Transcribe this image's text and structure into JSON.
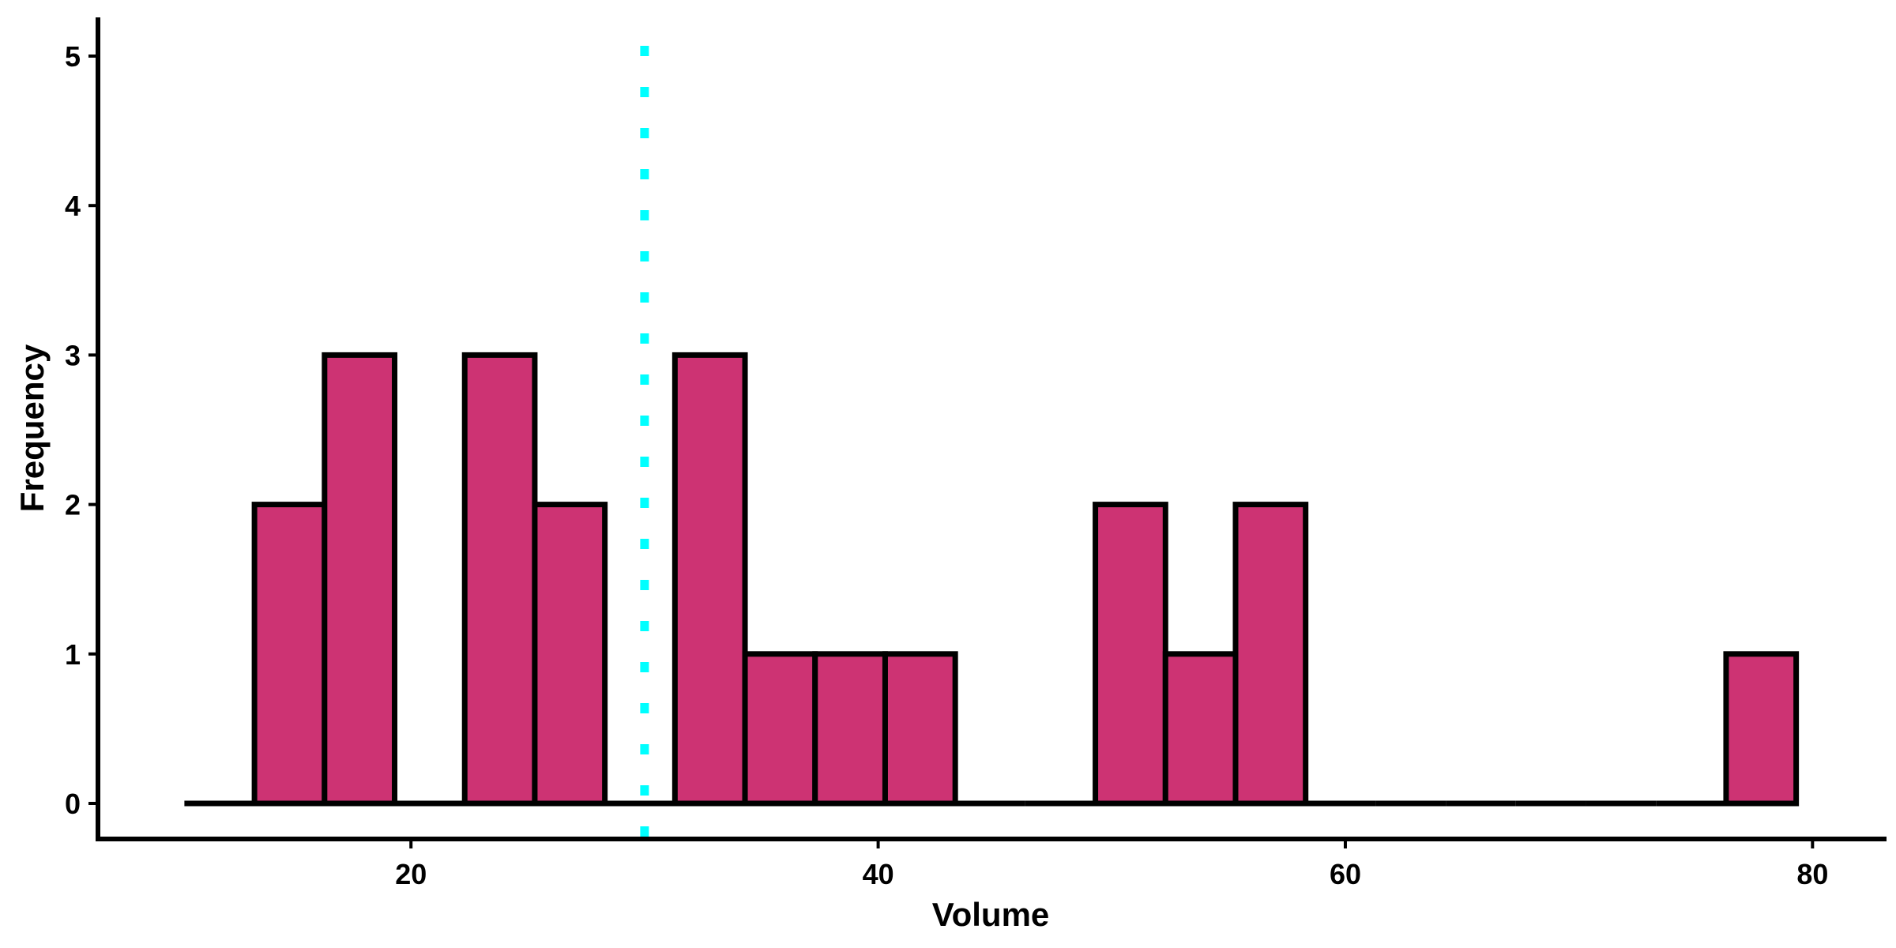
{
  "chart_data": {
    "type": "bar",
    "subtype": "histogram",
    "xlabel": "Volume",
    "ylabel": "Frequency",
    "bin_width": 3,
    "bins": [
      {
        "x0": 10.3,
        "x1": 13.3,
        "count": 0
      },
      {
        "x0": 13.3,
        "x1": 16.3,
        "count": 2
      },
      {
        "x0": 16.3,
        "x1": 19.3,
        "count": 3
      },
      {
        "x0": 19.3,
        "x1": 22.3,
        "count": 0
      },
      {
        "x0": 22.3,
        "x1": 25.3,
        "count": 3
      },
      {
        "x0": 25.3,
        "x1": 28.3,
        "count": 2
      },
      {
        "x0": 28.3,
        "x1": 31.3,
        "count": 0
      },
      {
        "x0": 31.3,
        "x1": 34.3,
        "count": 3
      },
      {
        "x0": 34.3,
        "x1": 37.3,
        "count": 1
      },
      {
        "x0": 37.3,
        "x1": 40.3,
        "count": 1
      },
      {
        "x0": 40.3,
        "x1": 43.3,
        "count": 1
      },
      {
        "x0": 43.3,
        "x1": 46.3,
        "count": 0
      },
      {
        "x0": 46.3,
        "x1": 49.3,
        "count": 0
      },
      {
        "x0": 49.3,
        "x1": 52.3,
        "count": 2
      },
      {
        "x0": 52.3,
        "x1": 55.3,
        "count": 1
      },
      {
        "x0": 55.3,
        "x1": 58.3,
        "count": 2
      },
      {
        "x0": 58.3,
        "x1": 61.3,
        "count": 0
      },
      {
        "x0": 61.3,
        "x1": 64.3,
        "count": 0
      },
      {
        "x0": 64.3,
        "x1": 67.3,
        "count": 0
      },
      {
        "x0": 67.3,
        "x1": 70.3,
        "count": 0
      },
      {
        "x0": 70.3,
        "x1": 73.3,
        "count": 0
      },
      {
        "x0": 73.3,
        "x1": 76.3,
        "count": 0
      },
      {
        "x0": 76.3,
        "x1": 79.3,
        "count": 1
      }
    ],
    "xticks": [
      20,
      40,
      60,
      80
    ],
    "yticks": [
      0,
      1,
      2,
      3,
      4,
      5
    ],
    "xlim": [
      6.6,
      83.1
    ],
    "ylim": [
      -0.2,
      5.2
    ],
    "reference_line": {
      "x": 30,
      "style": "dotted",
      "color": "#00ffff"
    },
    "bar_color": "#cd3373",
    "edge_color": "#000000",
    "grid": false,
    "legend": "none"
  }
}
